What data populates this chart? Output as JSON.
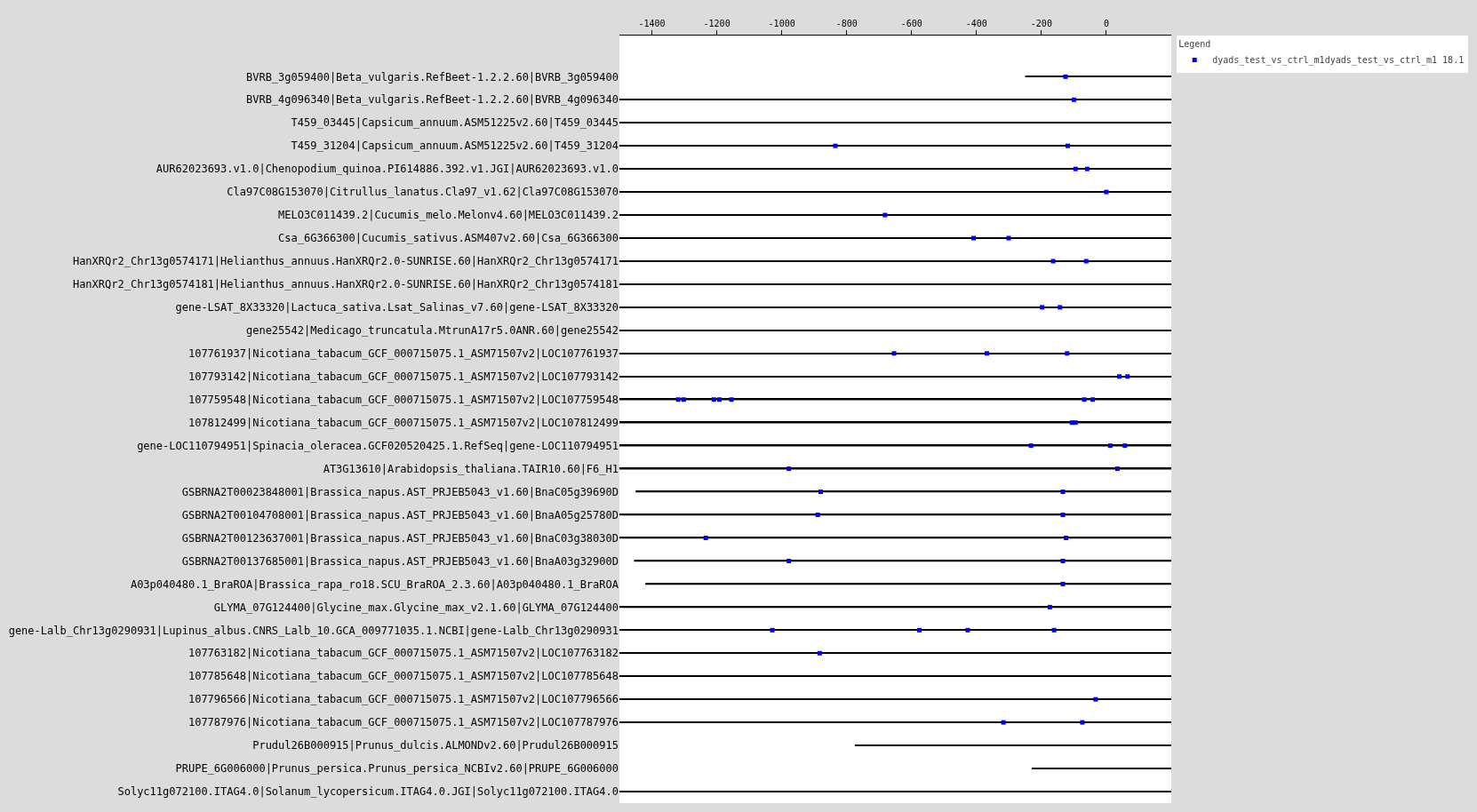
{
  "chart_data": {
    "type": "bar",
    "orientation": "horizontal",
    "legend_title": "Legend",
    "legend": "top right",
    "grid": false,
    "marker": "square",
    "categories": [
      "BVRB_3g059400|Beta_vulgaris.RefBeet-1.2.2.60|BVRB_3g059400",
      "BVRB_4g096340|Beta_vulgaris.RefBeet-1.2.2.60|BVRB_4g096340",
      "T459_03445|Capsicum_annuum.ASM51225v2.60|T459_03445",
      "T459_31204|Capsicum_annuum.ASM51225v2.60|T459_31204",
      "AUR62023693.v1.0|Chenopodium_quinoa.PI614886.392.v1.JGI|AUR62023693.v1.0",
      "Cla97C08G153070|Citrullus_lanatus.Cla97_v1.62|Cla97C08G153070",
      "MELO3C011439.2|Cucumis_melo.Melonv4.60|MELO3C011439.2",
      "Csa_6G366300|Cucumis_sativus.ASM407v2.60|Csa_6G366300",
      "HanXRQr2_Chr13g0574171|Helianthus_annuus.HanXRQr2.0-SUNRISE.60|HanXRQr2_Chr13g0574171",
      "HanXRQr2_Chr13g0574181|Helianthus_annuus.HanXRQr2.0-SUNRISE.60|HanXRQr2_Chr13g0574181",
      "gene-LSAT_8X33320|Lactuca_sativa.Lsat_Salinas_v7.60|gene-LSAT_8X33320",
      "gene25542|Medicago_truncatula.MtrunA17r5.0ANR.60|gene25542",
      "107761937|Nicotiana_tabacum_GCF_000715075.1_ASM71507v2|LOC107761937",
      "107793142|Nicotiana_tabacum_GCF_000715075.1_ASM71507v2|LOC107793142",
      "107759548|Nicotiana_tabacum_GCF_000715075.1_ASM71507v2|LOC107759548",
      "107812499|Nicotiana_tabacum_GCF_000715075.1_ASM71507v2|LOC107812499",
      "gene-LOC110794951|Spinacia_oleracea.GCF020520425.1.RefSeq|gene-LOC110794951",
      "AT3G13610|Arabidopsis_thaliana.TAIR10.60|F6_H1",
      "GSBRNA2T00023848001|Brassica_napus.AST_PRJEB5043_v1.60|BnaC05g39690D",
      "GSBRNA2T00104708001|Brassica_napus.AST_PRJEB5043_v1.60|BnaA05g25780D",
      "GSBRNA2T00123637001|Brassica_napus.AST_PRJEB5043_v1.60|BnaC03g38030D",
      "GSBRNA2T00137685001|Brassica_napus.AST_PRJEB5043_v1.60|BnaA03g32900D",
      "A03p040480.1_BraROA|Brassica_rapa_ro18.SCU_BraROA_2.3.60|A03p040480.1_BraROA",
      "GLYMA_07G124400|Glycine_max.Glycine_max_v2.1.60|GLYMA_07G124400",
      "gene-Lalb_Chr13g0290931|Lupinus_albus.CNRS_Lalb_10.GCA_009771035.1.NCBI|gene-Lalb_Chr13g0290931",
      "107763182|Nicotiana_tabacum_GCF_000715075.1_ASM71507v2|LOC107763182",
      "107785648|Nicotiana_tabacum_GCF_000715075.1_ASM71507v2|LOC107785648",
      "107796566|Nicotiana_tabacum_GCF_000715075.1_ASM71507v2|LOC107796566",
      "107787976|Nicotiana_tabacum_GCF_000715075.1_ASM71507v2|LOC107787976",
      "Prudul26B000915|Prunus_dulcis.ALMONDv2.60|Prudul26B000915",
      "PRUPE_6G006000|Prunus_persica.Prunus_persica_NCBIv2.60|PRUPE_6G006000",
      "Solyc11g072100.ITAG4.0|Solanum_lycopersicum.ITAG4.0.JGI|Solyc11g072100.ITAG4.0"
    ],
    "xlim": [
      -1500,
      200
    ],
    "xticks": [
      -1400,
      -1200,
      -1000,
      -800,
      -600,
      -400,
      -200,
      0
    ],
    "series": [
      {
        "color": "#000000",
        "base": [
          -250,
          -1500,
          -1500,
          -1500,
          -1500,
          -1500,
          -1500,
          -1500,
          -1500,
          -1500,
          -1500,
          -1500,
          -1500,
          -1500,
          -1500,
          -1500,
          -1500,
          -1500,
          -1450,
          -1500,
          -1500,
          -1455,
          -1420,
          -1500,
          -1500,
          -1500,
          -1500,
          -1500,
          -1500,
          -775,
          -230,
          -1500
        ],
        "values": [
          450,
          1700,
          1700,
          1700,
          1700,
          1700,
          1700,
          1700,
          1700,
          1700,
          1700,
          1700,
          1700,
          1700,
          1700,
          1700,
          1700,
          1700,
          1650,
          1700,
          1700,
          1655,
          1620,
          1700,
          1700,
          1700,
          1700,
          1700,
          1700,
          975,
          430,
          1700
        ]
      },
      {
        "type": "scatter",
        "name": "dyads_test_vs_ctrl_m1dyads_test_vs_ctrl_m1 18.1",
        "color": "#0000ff",
        "x": [
          "BVRB_3g059400|Beta_vulgaris.RefBeet-1.2.2.60|BVRB_3g059400",
          "BVRB_4g096340|Beta_vulgaris.RefBeet-1.2.2.60|BVRB_4g096340",
          "T459_31204|Capsicum_annuum.ASM51225v2.60|T459_31204",
          "T459_31204|Capsicum_annuum.ASM51225v2.60|T459_31204",
          "AUR62023693.v1.0|Chenopodium_quinoa.PI614886.392.v1.JGI|AUR62023693.v1.0",
          "AUR62023693.v1.0|Chenopodium_quinoa.PI614886.392.v1.JGI|AUR62023693.v1.0",
          "Cla97C08G153070|Citrullus_lanatus.Cla97_v1.62|Cla97C08G153070",
          "MELO3C011439.2|Cucumis_melo.Melonv4.60|MELO3C011439.2",
          "Csa_6G366300|Cucumis_sativus.ASM407v2.60|Csa_6G366300",
          "Csa_6G366300|Cucumis_sativus.ASM407v2.60|Csa_6G366300",
          "HanXRQr2_Chr13g0574171|Helianthus_annuus.HanXRQr2.0-SUNRISE.60|HanXRQr2_Chr13g0574171",
          "HanXRQr2_Chr13g0574171|Helianthus_annuus.HanXRQr2.0-SUNRISE.60|HanXRQr2_Chr13g0574171",
          "gene-LSAT_8X33320|Lactuca_sativa.Lsat_Salinas_v7.60|gene-LSAT_8X33320",
          "gene-LSAT_8X33320|Lactuca_sativa.Lsat_Salinas_v7.60|gene-LSAT_8X33320",
          "107761937|Nicotiana_tabacum_GCF_000715075.1_ASM71507v2|LOC107761937",
          "107761937|Nicotiana_tabacum_GCF_000715075.1_ASM71507v2|LOC107761937",
          "107761937|Nicotiana_tabacum_GCF_000715075.1_ASM71507v2|LOC107761937",
          "107793142|Nicotiana_tabacum_GCF_000715075.1_ASM71507v2|LOC107793142",
          "107793142|Nicotiana_tabacum_GCF_000715075.1_ASM71507v2|LOC107793142",
          "107759548|Nicotiana_tabacum_GCF_000715075.1_ASM71507v2|LOC107759548",
          "107759548|Nicotiana_tabacum_GCF_000715075.1_ASM71507v2|LOC107759548",
          "107759548|Nicotiana_tabacum_GCF_000715075.1_ASM71507v2|LOC107759548",
          "107759548|Nicotiana_tabacum_GCF_000715075.1_ASM71507v2|LOC107759548",
          "107759548|Nicotiana_tabacum_GCF_000715075.1_ASM71507v2|LOC107759548",
          "107759548|Nicotiana_tabacum_GCF_000715075.1_ASM71507v2|LOC107759548",
          "107759548|Nicotiana_tabacum_GCF_000715075.1_ASM71507v2|LOC107759548",
          "107812499|Nicotiana_tabacum_GCF_000715075.1_ASM71507v2|LOC107812499",
          "107812499|Nicotiana_tabacum_GCF_000715075.1_ASM71507v2|LOC107812499",
          "gene-LOC110794951|Spinacia_oleracea.GCF020520425.1.RefSeq|gene-LOC110794951",
          "gene-LOC110794951|Spinacia_oleracea.GCF020520425.1.RefSeq|gene-LOC110794951",
          "gene-LOC110794951|Spinacia_oleracea.GCF020520425.1.RefSeq|gene-LOC110794951",
          "AT3G13610|Arabidopsis_thaliana.TAIR10.60|F6_H1",
          "AT3G13610|Arabidopsis_thaliana.TAIR10.60|F6_H1",
          "GSBRNA2T00023848001|Brassica_napus.AST_PRJEB5043_v1.60|BnaC05g39690D",
          "GSBRNA2T00023848001|Brassica_napus.AST_PRJEB5043_v1.60|BnaC05g39690D",
          "GSBRNA2T00104708001|Brassica_napus.AST_PRJEB5043_v1.60|BnaA05g25780D",
          "GSBRNA2T00104708001|Brassica_napus.AST_PRJEB5043_v1.60|BnaA05g25780D",
          "GSBRNA2T00123637001|Brassica_napus.AST_PRJEB5043_v1.60|BnaC03g38030D",
          "GSBRNA2T00123637001|Brassica_napus.AST_PRJEB5043_v1.60|BnaC03g38030D",
          "GSBRNA2T00137685001|Brassica_napus.AST_PRJEB5043_v1.60|BnaA03g32900D",
          "GSBRNA2T00137685001|Brassica_napus.AST_PRJEB5043_v1.60|BnaA03g32900D",
          "A03p040480.1_BraROA|Brassica_rapa_ro18.SCU_BraROA_2.3.60|A03p040480.1_BraROA",
          "GLYMA_07G124400|Glycine_max.Glycine_max_v2.1.60|GLYMA_07G124400",
          "gene-Lalb_Chr13g0290931|Lupinus_albus.CNRS_Lalb_10.GCA_009771035.1.NCBI|gene-Lalb_Chr13g0290931",
          "gene-Lalb_Chr13g0290931|Lupinus_albus.CNRS_Lalb_10.GCA_009771035.1.NCBI|gene-Lalb_Chr13g0290931",
          "gene-Lalb_Chr13g0290931|Lupinus_albus.CNRS_Lalb_10.GCA_009771035.1.NCBI|gene-Lalb_Chr13g0290931",
          "gene-Lalb_Chr13g0290931|Lupinus_albus.CNRS_Lalb_10.GCA_009771035.1.NCBI|gene-Lalb_Chr13g0290931",
          "107763182|Nicotiana_tabacum_GCF_000715075.1_ASM71507v2|LOC107763182",
          "107796566|Nicotiana_tabacum_GCF_000715075.1_ASM71507v2|LOC107796566",
          "107787976|Nicotiana_tabacum_GCF_000715075.1_ASM71507v2|LOC107787976",
          "107787976|Nicotiana_tabacum_GCF_000715075.1_ASM71507v2|LOC107787976"
        ],
        "values": [
          -126,
          -100,
          -835,
          -119,
          -95,
          -59,
          0,
          -682,
          -409,
          -301,
          -164,
          -62,
          -198,
          -143,
          -654,
          -368,
          -121,
          40,
          65,
          -1319,
          -1302,
          -1209,
          -1192,
          -1155,
          -68,
          -42,
          -106,
          -95,
          -232,
          12,
          57,
          -978,
          34,
          -880,
          -134,
          -889,
          -134,
          -1234,
          -124,
          -978,
          -134,
          -134,
          -174,
          -1029,
          -576,
          -427,
          -161,
          -883,
          -33,
          -317,
          -74
        ]
      }
    ]
  }
}
